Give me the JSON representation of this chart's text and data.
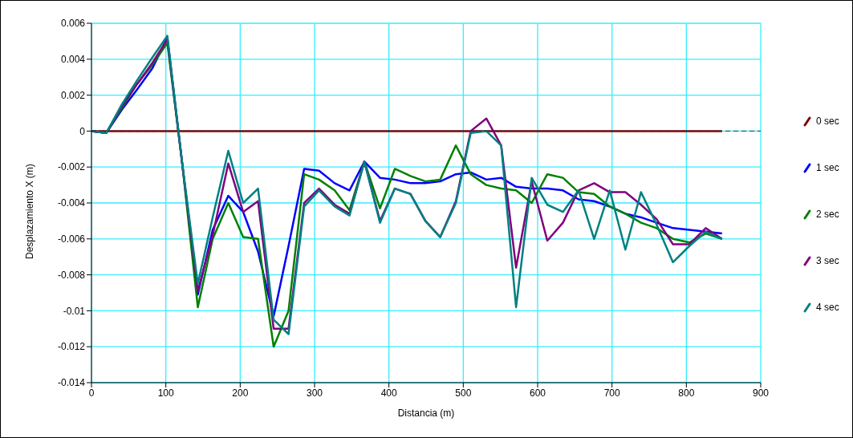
{
  "chart_data": {
    "type": "line",
    "xlabel": "Distancia (m)",
    "ylabel": "Desplazamiento X (m)",
    "x": [
      0,
      20,
      41,
      61,
      82,
      102,
      122,
      143,
      163,
      184,
      204,
      224,
      245,
      265,
      286,
      306,
      327,
      347,
      367,
      388,
      408,
      429,
      449,
      469,
      490,
      510,
      531,
      551,
      571,
      592,
      613,
      634,
      655,
      676,
      697,
      718,
      739,
      760,
      782,
      804,
      826,
      848
    ],
    "series": [
      {
        "name": "0 sec",
        "color": "#800000",
        "values": [
          0,
          0,
          0,
          0,
          0,
          0,
          0,
          0,
          0,
          0,
          0,
          0,
          0,
          0,
          0,
          0,
          0,
          0,
          0,
          0,
          0,
          0,
          0,
          0,
          0,
          0,
          0,
          0,
          0,
          0,
          0,
          0,
          0,
          0,
          0,
          0,
          0,
          0,
          0,
          0,
          0,
          0
        ]
      },
      {
        "name": "1 sec",
        "color": "#0000ff",
        "values": [
          0,
          -0.0001,
          0.0012,
          0.0023,
          0.0035,
          0.0052,
          -0.0018,
          -0.0091,
          -0.0055,
          -0.0036,
          -0.0045,
          -0.0067,
          -0.0103,
          -0.0064,
          -0.0021,
          -0.0022,
          -0.0029,
          -0.0033,
          -0.0017,
          -0.0026,
          -0.0027,
          -0.0029,
          -0.0029,
          -0.0028,
          -0.0024,
          -0.0023,
          -0.0027,
          -0.0026,
          -0.0031,
          -0.0032,
          -0.0032,
          -0.0033,
          -0.0038,
          -0.0039,
          -0.0042,
          -0.0046,
          -0.0048,
          -0.0051,
          -0.0054,
          -0.0055,
          -0.0056,
          -0.0057
        ]
      },
      {
        "name": "2 sec",
        "color": "#008000",
        "values": [
          0,
          -0.0001,
          0.0013,
          0.0026,
          0.0037,
          0.0049,
          -0.0018,
          -0.0098,
          -0.006,
          -0.004,
          -0.0059,
          -0.006,
          -0.012,
          -0.01,
          -0.0024,
          -0.0027,
          -0.0033,
          -0.0044,
          -0.0017,
          -0.0043,
          -0.0021,
          -0.0025,
          -0.0028,
          -0.0027,
          -0.0008,
          -0.0024,
          -0.003,
          -0.0032,
          -0.0033,
          -0.004,
          -0.0024,
          -0.0026,
          -0.0034,
          -0.0035,
          -0.0042,
          -0.0046,
          -0.0051,
          -0.0054,
          -0.006,
          -0.0062,
          -0.0057,
          -0.006
        ]
      },
      {
        "name": "3 sec",
        "color": "#800080",
        "values": [
          0,
          -0.0001,
          0.0014,
          0.0026,
          0.0038,
          0.0051,
          -0.0018,
          -0.0089,
          -0.0058,
          -0.0018,
          -0.0045,
          -0.0039,
          -0.011,
          -0.011,
          -0.004,
          -0.0032,
          -0.0041,
          -0.0046,
          -0.0017,
          -0.005,
          -0.0032,
          -0.0035,
          -0.005,
          -0.0059,
          -0.0039,
          0,
          0.0007,
          -0.0008,
          -0.0076,
          -0.0028,
          -0.0061,
          -0.0051,
          -0.0033,
          -0.0029,
          -0.0034,
          -0.0034,
          -0.0041,
          -0.0049,
          -0.0063,
          -0.0063,
          -0.0054,
          -0.006
        ]
      },
      {
        "name": "4 sec",
        "color": "#008080",
        "values": [
          0,
          -0.0001,
          0.0015,
          0.0028,
          0.0041,
          0.0053,
          -0.0018,
          -0.0085,
          -0.0048,
          -0.0011,
          -0.004,
          -0.0032,
          -0.0105,
          -0.0113,
          -0.0042,
          -0.0033,
          -0.0042,
          -0.0047,
          -0.0017,
          -0.0051,
          -0.0032,
          -0.0035,
          -0.005,
          -0.0059,
          -0.004,
          -0.0001,
          0,
          -0.0008,
          -0.0098,
          -0.0026,
          -0.0041,
          -0.0045,
          -0.0033,
          -0.006,
          -0.0033,
          -0.0066,
          -0.0034,
          -0.0052,
          -0.0073,
          -0.0064,
          -0.0056,
          -0.006
        ]
      }
    ],
    "xlim": [
      0,
      900
    ],
    "xticks": [
      0,
      100,
      200,
      300,
      400,
      500,
      600,
      700,
      800,
      900
    ],
    "ylim": [
      -0.014,
      0.006
    ],
    "yticks": [
      -0.014,
      -0.012,
      -0.01,
      -0.008,
      -0.006,
      -0.004,
      -0.002,
      0,
      0.002,
      0.004,
      0.006
    ],
    "ref_lines": [
      {
        "axis": "y",
        "value": 0,
        "color": "#333333",
        "line_style": "dashed"
      }
    ],
    "grid": true,
    "legend": "right",
    "marker": "none",
    "line_style": "solid"
  }
}
